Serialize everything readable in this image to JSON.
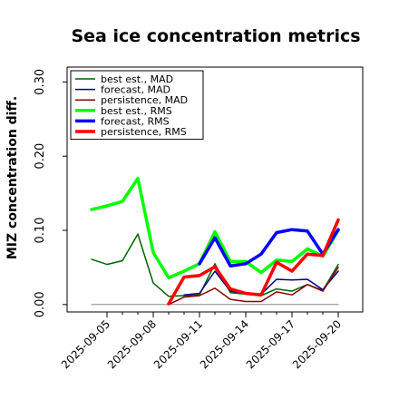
{
  "chart_data": {
    "type": "line",
    "title": "Sea ice concentration metrics",
    "xlabel": "",
    "ylabel": "MIZ concentration diff.",
    "ylim": [
      -0.01,
      0.32
    ],
    "yticks": [
      0.0,
      0.1,
      0.2,
      0.3
    ],
    "ytick_labels": [
      "0.00",
      "0.10",
      "0.20",
      "0.30"
    ],
    "x_dates": [
      "2025-09-05",
      "2025-09-06",
      "2025-09-07",
      "2025-09-08",
      "2025-09-09",
      "2025-09-10",
      "2025-09-11",
      "2025-09-12",
      "2025-09-13",
      "2025-09-14",
      "2025-09-15",
      "2025-09-16",
      "2025-09-17",
      "2025-09-18",
      "2025-09-19",
      "2025-09-20"
    ],
    "x_tick_labels": [
      "2025-09-05",
      "2025-09-08",
      "2025-09-11",
      "2025-09-14",
      "2025-09-17",
      "2025-09-20"
    ],
    "highlighted_tick": "2025-09-11",
    "highlight_color": "#008000",
    "grid": false,
    "legend_position": "upper-left",
    "series": [
      {
        "name": "best est., MAD",
        "color": "#006400",
        "width": 1.5,
        "x": [
          "2025-09-04",
          "2025-09-05",
          "2025-09-06",
          "2025-09-07",
          "2025-09-08",
          "2025-09-09",
          "2025-09-10",
          "2025-09-11",
          "2025-09-12",
          "2025-09-13",
          "2025-09-14",
          "2025-09-15",
          "2025-09-16",
          "2025-09-17",
          "2025-09-18",
          "2025-09-19",
          "2025-09-20"
        ],
        "y": [
          0.061,
          0.054,
          0.059,
          0.095,
          0.029,
          0.011,
          0.012,
          0.013,
          0.055,
          0.016,
          0.014,
          0.012,
          0.021,
          0.018,
          0.027,
          0.019,
          0.054
        ]
      },
      {
        "name": "forecast, MAD",
        "color": "#00008b",
        "width": 1.5,
        "x": [
          "2025-09-10",
          "2025-09-11",
          "2025-09-12",
          "2025-09-13",
          "2025-09-14",
          "2025-09-15",
          "2025-09-16",
          "2025-09-17",
          "2025-09-18",
          "2025-09-19",
          "2025-09-20"
        ],
        "y": [
          0.013,
          0.015,
          0.045,
          0.018,
          0.015,
          0.014,
          0.034,
          0.033,
          0.034,
          0.02,
          0.045
        ]
      },
      {
        "name": "persistence, MAD",
        "color": "#8b0000",
        "width": 1.5,
        "x": [
          "2025-09-09",
          "2025-09-10",
          "2025-09-11",
          "2025-09-12",
          "2025-09-13",
          "2025-09-14",
          "2025-09-15",
          "2025-09-16",
          "2025-09-17",
          "2025-09-18",
          "2025-09-19",
          "2025-09-20"
        ],
        "y": [
          0.0,
          0.01,
          0.012,
          0.022,
          0.007,
          0.004,
          0.004,
          0.017,
          0.013,
          0.027,
          0.018,
          0.05
        ]
      },
      {
        "name": "best est., RMS",
        "color": "#00ff00",
        "width": 3.5,
        "x": [
          "2025-09-04",
          "2025-09-05",
          "2025-09-06",
          "2025-09-07",
          "2025-09-08",
          "2025-09-09",
          "2025-09-10",
          "2025-09-11",
          "2025-09-12",
          "2025-09-13",
          "2025-09-14",
          "2025-09-15",
          "2025-09-16",
          "2025-09-17",
          "2025-09-18",
          "2025-09-19",
          "2025-09-20"
        ],
        "y": [
          0.128,
          0.133,
          0.139,
          0.17,
          0.07,
          0.036,
          0.045,
          0.055,
          0.098,
          0.058,
          0.058,
          0.043,
          0.06,
          0.058,
          0.075,
          0.065,
          0.1
        ]
      },
      {
        "name": "forecast, RMS",
        "color": "#0000ff",
        "width": 3.5,
        "x": [
          "2025-09-11",
          "2025-09-12",
          "2025-09-13",
          "2025-09-14",
          "2025-09-15",
          "2025-09-16",
          "2025-09-17",
          "2025-09-18",
          "2025-09-19",
          "2025-09-20"
        ],
        "y": [
          0.055,
          0.09,
          0.052,
          0.055,
          0.068,
          0.097,
          0.101,
          0.099,
          0.068,
          0.101
        ]
      },
      {
        "name": "persistence, RMS",
        "color": "#ff0000",
        "width": 3.5,
        "x": [
          "2025-09-09",
          "2025-09-10",
          "2025-09-11",
          "2025-09-12",
          "2025-09-13",
          "2025-09-14",
          "2025-09-15",
          "2025-09-16",
          "2025-09-17",
          "2025-09-18",
          "2025-09-19",
          "2025-09-20"
        ],
        "y": [
          0.001,
          0.037,
          0.039,
          0.051,
          0.021,
          0.015,
          0.013,
          0.057,
          0.045,
          0.068,
          0.066,
          0.114
        ]
      },
      {
        "name": "",
        "color": "#888888",
        "width": 1.0,
        "x": [
          "2025-09-04",
          "2025-09-20"
        ],
        "y": [
          0.0,
          0.0
        ]
      }
    ]
  }
}
